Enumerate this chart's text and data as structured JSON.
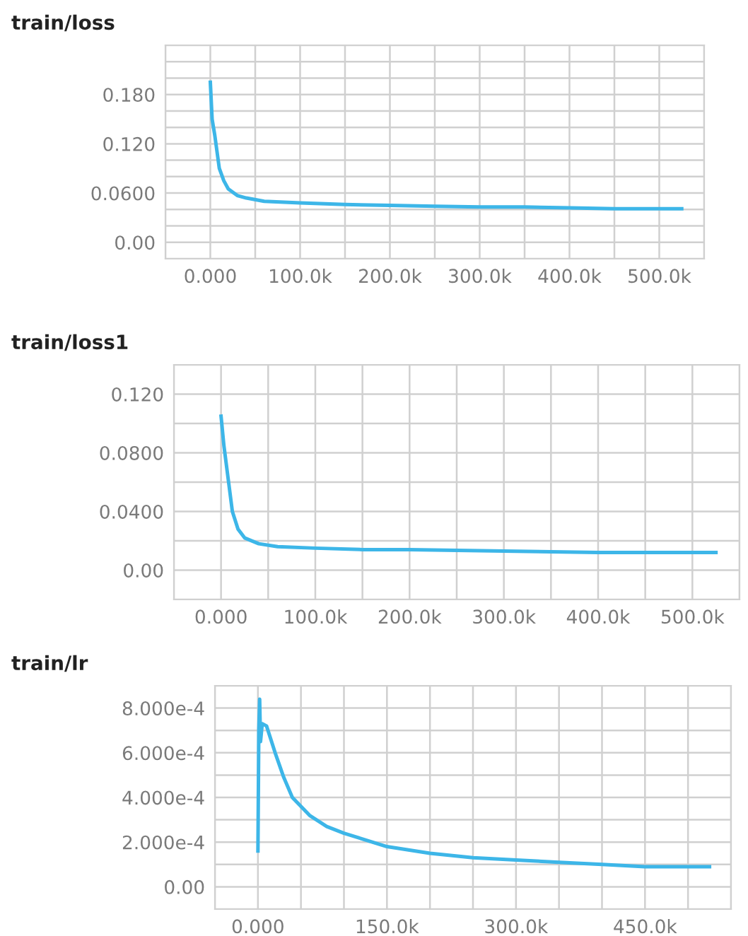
{
  "chart_data": [
    {
      "type": "line",
      "title": "train/loss",
      "grid": true,
      "marker": "none",
      "line_style": "solid",
      "series": [
        {
          "color": "#3db6e8",
          "x": [
            0,
            2000,
            5000,
            10000,
            15000,
            20000,
            30000,
            40000,
            60000,
            100000,
            150000,
            200000,
            250000,
            300000,
            350000,
            400000,
            450000,
            500000,
            525000
          ],
          "values": [
            0.195,
            0.15,
            0.13,
            0.09,
            0.075,
            0.065,
            0.057,
            0.054,
            0.05,
            0.048,
            0.046,
            0.045,
            0.044,
            0.043,
            0.043,
            0.042,
            0.041,
            0.041,
            0.041
          ]
        }
      ],
      "xlim": [
        -50000,
        550000
      ],
      "ylim": [
        -0.02,
        0.24
      ],
      "xticks": [
        {
          "value": -50000,
          "label": null
        },
        {
          "value": 0,
          "label": "0.000"
        },
        {
          "value": 50000,
          "label": null
        },
        {
          "value": 100000,
          "label": "100.0k"
        },
        {
          "value": 150000,
          "label": null
        },
        {
          "value": 200000,
          "label": "200.0k"
        },
        {
          "value": 250000,
          "label": null
        },
        {
          "value": 300000,
          "label": "300.0k"
        },
        {
          "value": 350000,
          "label": null
        },
        {
          "value": 400000,
          "label": "400.0k"
        },
        {
          "value": 450000,
          "label": null
        },
        {
          "value": 500000,
          "label": "500.0k"
        },
        {
          "value": 550000,
          "label": null
        }
      ],
      "yticks": [
        {
          "value": -0.02,
          "label": null
        },
        {
          "value": 0,
          "label": "0.00"
        },
        {
          "value": 0.02,
          "label": null
        },
        {
          "value": 0.04,
          "label": null
        },
        {
          "value": 0.06,
          "label": "0.0600"
        },
        {
          "value": 0.08,
          "label": null
        },
        {
          "value": 0.1,
          "label": null
        },
        {
          "value": 0.12,
          "label": "0.120"
        },
        {
          "value": 0.14,
          "label": null
        },
        {
          "value": 0.16,
          "label": null
        },
        {
          "value": 0.18,
          "label": "0.180"
        },
        {
          "value": 0.2,
          "label": null
        },
        {
          "value": 0.22,
          "label": null
        },
        {
          "value": 0.24,
          "label": null
        }
      ]
    },
    {
      "type": "line",
      "title": "train/loss1",
      "grid": true,
      "marker": "none",
      "line_style": "solid",
      "series": [
        {
          "color": "#3db6e8",
          "x": [
            0,
            3000,
            8000,
            12000,
            18000,
            25000,
            40000,
            60000,
            100000,
            150000,
            200000,
            300000,
            400000,
            500000,
            525000
          ],
          "values": [
            0.105,
            0.085,
            0.06,
            0.04,
            0.028,
            0.022,
            0.018,
            0.016,
            0.015,
            0.014,
            0.014,
            0.013,
            0.012,
            0.012,
            0.012
          ]
        }
      ],
      "xlim": [
        -50000,
        550000
      ],
      "ylim": [
        -0.02,
        0.14
      ],
      "xticks": [
        {
          "value": -50000,
          "label": null
        },
        {
          "value": 0,
          "label": "0.000"
        },
        {
          "value": 50000,
          "label": null
        },
        {
          "value": 100000,
          "label": "100.0k"
        },
        {
          "value": 150000,
          "label": null
        },
        {
          "value": 200000,
          "label": "200.0k"
        },
        {
          "value": 250000,
          "label": null
        },
        {
          "value": 300000,
          "label": "300.0k"
        },
        {
          "value": 350000,
          "label": null
        },
        {
          "value": 400000,
          "label": "400.0k"
        },
        {
          "value": 450000,
          "label": null
        },
        {
          "value": 500000,
          "label": "500.0k"
        },
        {
          "value": 550000,
          "label": null
        }
      ],
      "yticks": [
        {
          "value": -0.02,
          "label": null
        },
        {
          "value": 0,
          "label": "0.00"
        },
        {
          "value": 0.02,
          "label": null
        },
        {
          "value": 0.04,
          "label": "0.0400"
        },
        {
          "value": 0.06,
          "label": null
        },
        {
          "value": 0.08,
          "label": "0.0800"
        },
        {
          "value": 0.1,
          "label": null
        },
        {
          "value": 0.12,
          "label": "0.120"
        },
        {
          "value": 0.14,
          "label": null
        }
      ]
    },
    {
      "type": "line",
      "title": "train/lr",
      "grid": true,
      "marker": "none",
      "line_style": "solid",
      "series": [
        {
          "color": "#3db6e8",
          "x": [
            0,
            1000,
            2000,
            3000,
            5000,
            10000,
            20000,
            30000,
            40000,
            60000,
            80000,
            100000,
            150000,
            200000,
            250000,
            300000,
            350000,
            400000,
            450000,
            525000
          ],
          "values": [
            0.00016,
            0.0007,
            0.00084,
            0.00065,
            0.00073,
            0.00072,
            0.0006,
            0.00049,
            0.0004,
            0.00032,
            0.00027,
            0.00024,
            0.00018,
            0.00015,
            0.00013,
            0.00012,
            0.00011,
            0.0001,
            9e-05,
            9e-05
          ]
        }
      ],
      "xlim": [
        -50000,
        550000
      ],
      "ylim": [
        -0.0001,
        0.0009
      ],
      "xticks": [
        {
          "value": -50000,
          "label": null
        },
        {
          "value": 0,
          "label": "0.000"
        },
        {
          "value": 50000,
          "label": null
        },
        {
          "value": 100000,
          "label": null
        },
        {
          "value": 150000,
          "label": "150.0k"
        },
        {
          "value": 200000,
          "label": null
        },
        {
          "value": 250000,
          "label": null
        },
        {
          "value": 300000,
          "label": "300.0k"
        },
        {
          "value": 350000,
          "label": null
        },
        {
          "value": 400000,
          "label": null
        },
        {
          "value": 450000,
          "label": "450.0k"
        },
        {
          "value": 500000,
          "label": null
        },
        {
          "value": 550000,
          "label": null
        }
      ],
      "yticks": [
        {
          "value": -0.0001,
          "label": null
        },
        {
          "value": 0,
          "label": "0.00"
        },
        {
          "value": 0.0001,
          "label": null
        },
        {
          "value": 0.0002,
          "label": "2.000e-4"
        },
        {
          "value": 0.0003,
          "label": null
        },
        {
          "value": 0.0004,
          "label": "4.000e-4"
        },
        {
          "value": 0.0005,
          "label": null
        },
        {
          "value": 0.0006,
          "label": "6.000e-4"
        },
        {
          "value": 0.0007,
          "label": null
        },
        {
          "value": 0.0008,
          "label": "8.000e-4"
        },
        {
          "value": 0.0009,
          "label": null
        }
      ]
    }
  ]
}
